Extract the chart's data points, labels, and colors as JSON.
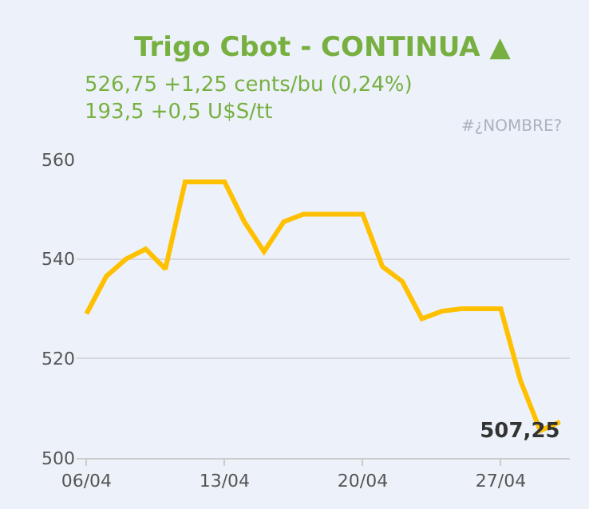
{
  "chart_data": {
    "type": "line",
    "title": "Trigo Cbot - CONTINUA ▲",
    "subtitle": "526,75 +1,25 cents/bu (0,24%)\n193,5 +0,5 U$S/tt",
    "annotations": [
      "#¿NOMBRE?"
    ],
    "x": [
      "--04-06",
      "--04-07",
      "--04-08",
      "--04-09",
      "--04-10",
      "--04-11",
      "--04-12",
      "--04-13",
      "--04-14",
      "--04-15",
      "--04-16",
      "--04-17",
      "--04-18",
      "--04-19",
      "--04-20",
      "--04-21",
      "--04-22",
      "--04-23",
      "--04-24",
      "--04-25",
      "--04-26",
      "--04-27",
      "--04-28",
      "--04-29",
      "--04-30"
    ],
    "series": [
      {
        "color": "#ffc000",
        "values": [
          529,
          536.5,
          540,
          542,
          538,
          555.5,
          555.5,
          555.5,
          547.5,
          541.5,
          547.5,
          549,
          549,
          549,
          549,
          538.5,
          535.5,
          528,
          529.5,
          530,
          530,
          530,
          515.5,
          505.5,
          507.25
        ],
        "value_labels": [
          null,
          null,
          null,
          null,
          null,
          null,
          null,
          null,
          null,
          null,
          null,
          null,
          null,
          null,
          null,
          null,
          null,
          null,
          null,
          null,
          null,
          null,
          null,
          null,
          "507,25"
        ]
      }
    ],
    "xlim": [
      "--04-05T12:00",
      "--04-30T12:00"
    ],
    "xticks": [
      {
        "value": "--04-06",
        "label": "06/04"
      },
      {
        "value": "--04-13",
        "label": "13/04"
      },
      {
        "value": "--04-20",
        "label": "20/04"
      },
      {
        "value": "--04-27",
        "label": "27/04"
      }
    ],
    "ylim": [
      500,
      560
    ],
    "yticks": [
      500,
      520,
      540,
      560
    ],
    "grid": "y",
    "marker": "none",
    "line_style": "solid",
    "legend": false
  }
}
